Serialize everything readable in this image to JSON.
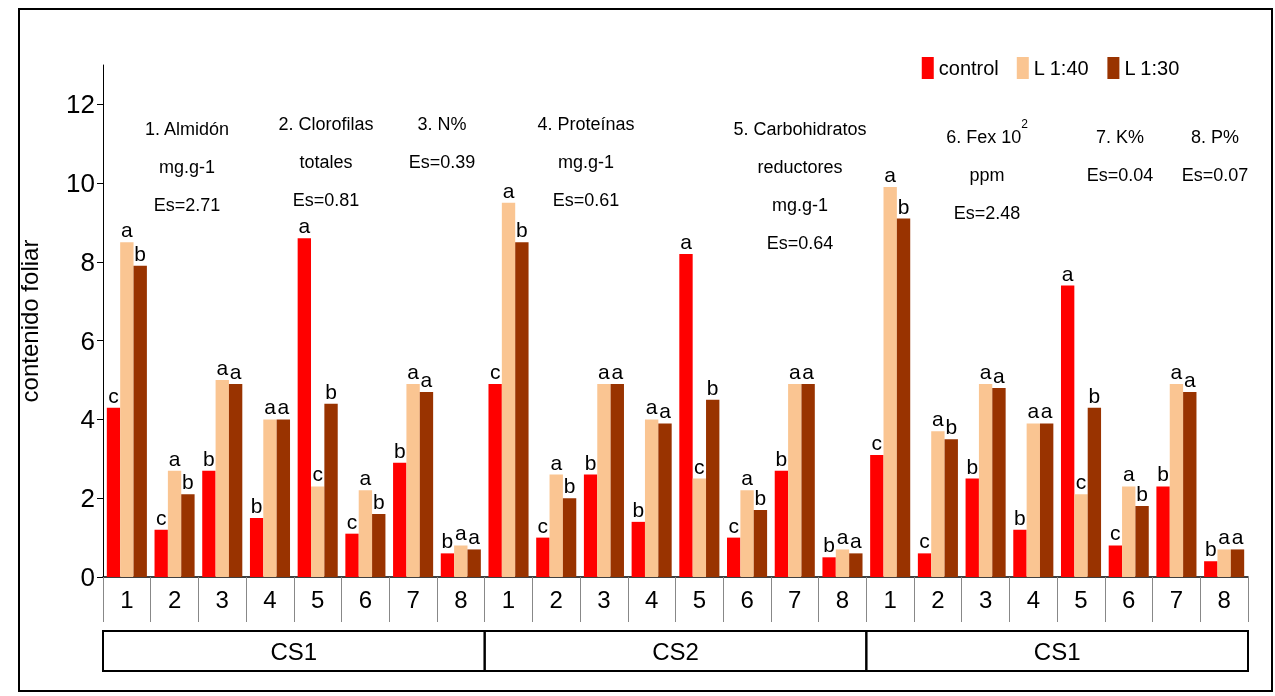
{
  "chart_data": {
    "type": "bar",
    "ylabel": "contenido foliar",
    "ylim": [
      0,
      13
    ],
    "yticks": [
      0,
      2,
      4,
      6,
      8,
      10,
      12
    ],
    "legend": "top right",
    "categories": [
      "1",
      "2",
      "3",
      "4",
      "5",
      "6",
      "7",
      "8",
      "1",
      "2",
      "3",
      "4",
      "5",
      "6",
      "7",
      "8",
      "1",
      "2",
      "3",
      "4",
      "5",
      "6",
      "7",
      "8"
    ],
    "series": [
      {
        "name": "control",
        "color": "#ff0000",
        "values": [
          4.3,
          1.2,
          2.7,
          1.5,
          8.6,
          1.1,
          2.9,
          0.6,
          4.9,
          1.0,
          2.6,
          1.4,
          8.2,
          1.0,
          2.7,
          0.5,
          3.1,
          0.6,
          2.5,
          1.2,
          7.4,
          0.8,
          2.3,
          0.4
        ],
        "value_labels": [
          "c",
          "c",
          "b",
          "b",
          "a",
          "c",
          "b",
          "b",
          "c",
          "c",
          "b",
          "b",
          "a",
          "c",
          "b",
          "b",
          "c",
          "c",
          "b",
          "b",
          "a",
          "c",
          "b",
          "b"
        ]
      },
      {
        "name": "L 1:40",
        "color": "#fac592",
        "values": [
          8.5,
          2.7,
          5.0,
          4.0,
          2.3,
          2.2,
          4.9,
          0.8,
          9.5,
          2.6,
          4.9,
          4.0,
          2.5,
          2.2,
          4.9,
          0.7,
          9.9,
          3.7,
          4.9,
          3.9,
          2.1,
          2.3,
          4.9,
          0.7
        ],
        "value_labels": [
          "a",
          "a",
          "a",
          "a",
          "c",
          "a",
          "a",
          "a",
          "a",
          "a",
          "a",
          "a",
          "c",
          "a",
          "a",
          "a",
          "a",
          "a",
          "a",
          "a",
          "c",
          "a",
          "a",
          "a"
        ]
      },
      {
        "name": "L 1:30",
        "color": "#993300",
        "values": [
          7.9,
          2.1,
          4.9,
          4.0,
          4.4,
          1.6,
          4.7,
          0.7,
          8.5,
          2.0,
          4.9,
          3.9,
          4.5,
          1.7,
          4.9,
          0.6,
          9.1,
          3.5,
          4.8,
          3.9,
          4.3,
          1.8,
          4.7,
          0.7
        ],
        "value_labels": [
          "b",
          "b",
          "a",
          "a",
          "b",
          "b",
          "a",
          "a",
          "b",
          "b",
          "a",
          "a",
          "b",
          "b",
          "a",
          "a",
          "b",
          "b",
          "a",
          "a",
          "b",
          "b",
          "a",
          "a"
        ]
      }
    ],
    "annotations": [
      "1. Almidón\nmg.g-1\nEs=2.71",
      "2. Clorofilas\ntotales\nEs=0.81",
      "3. N%\nEs=0.39",
      "4. Proteínas\nmg.g-1\nEs=0.61",
      "5. Carbohidratos\nreductores\nmg.g-1\nEs=0.64",
      "6. Fex 10$^{2}$\nppm\nEs=2.48",
      "7. K%\nEs=0.04",
      "8. P%\nEs=0.07",
      "CS1",
      "CS2",
      "CS1"
    ]
  }
}
